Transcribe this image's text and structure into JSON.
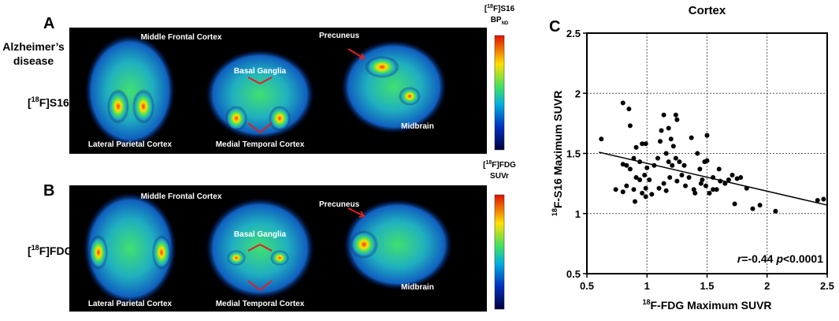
{
  "figure": {
    "panel_labels": [
      "A",
      "B",
      "C"
    ],
    "row_title": "Alzheimer’s disease",
    "rows": [
      {
        "tracer": {
          "pre": "[",
          "sup": "18",
          "post": "F]S16"
        },
        "colorbar": {
          "pre": "[",
          "sup": "18",
          "post": "F]S16",
          "line2": "BP",
          "sub": "ND"
        },
        "regions": [
          "Middle Frontal Cortex",
          "Precuneus",
          "Basal Ganglia",
          "Lateral  Parietal Cortex",
          "Medial Temporal Cortex",
          "Midbrain"
        ]
      },
      {
        "tracer": {
          "pre": "[",
          "sup": "18",
          "post": "F]FDG"
        },
        "colorbar": {
          "pre": "[",
          "sup": "18",
          "post": "F]FDG",
          "line2": "SUVr"
        },
        "regions": [
          "Middle Frontal Cortex",
          "Precuneus",
          "Basal Ganglia",
          "Lateral Parietal Cortex",
          "Medial Temporal Cortex",
          "Midbrain"
        ]
      }
    ]
  },
  "chart_data": {
    "type": "scatter",
    "title": "Cortex",
    "x_label": {
      "sup": "18",
      "text": "F-FDG Maximum SUVR"
    },
    "y_label": {
      "sup": "18",
      "text": "F-S16 Maximum SUVR"
    },
    "annotation": {
      "r_symbol": "r",
      "r_text": "=-0.44",
      "p_symbol": "p",
      "p_text": "<0.0001"
    },
    "xlim": [
      0.5,
      2.5
    ],
    "ylim": [
      0.5,
      2.5
    ],
    "xticks": [
      0.5,
      1.0,
      1.5,
      2.0,
      2.5
    ],
    "yticks": [
      0.5,
      1.0,
      1.5,
      2.0,
      2.5
    ],
    "grid": true,
    "color": "#000000",
    "x": [
      0.62,
      0.8,
      0.85,
      0.86,
      0.91,
      0.96,
      0.99,
      0.89,
      0.94,
      0.83,
      0.86,
      0.8,
      0.74,
      0.8,
      0.83,
      0.89,
      0.9,
      0.94,
      0.98,
      0.96,
      0.99,
      1.02,
      1.0,
      1.06,
      1.09,
      1.11,
      1.12,
      1.14,
      1.18,
      1.2,
      1.22,
      1.24,
      1.25,
      1.16,
      1.18,
      1.21,
      1.24,
      1.27,
      1.29,
      1.25,
      1.19,
      1.14,
      1.1,
      1.04,
      1.32,
      1.35,
      1.39,
      1.37,
      1.42,
      1.44,
      1.46,
      1.48,
      1.5,
      1.49,
      1.52,
      1.55,
      1.58,
      1.6,
      1.61,
      1.65,
      1.68,
      1.71,
      1.75,
      1.78,
      1.73,
      1.83,
      1.88,
      1.94,
      2.07,
      2.42,
      2.47,
      1.5,
      1.31,
      1.4,
      0.91,
      0.99,
      1.16,
      1.45,
      1.55
    ],
    "y": [
      1.62,
      1.92,
      1.87,
      1.73,
      1.55,
      1.58,
      1.58,
      1.46,
      1.43,
      1.4,
      1.37,
      1.41,
      1.2,
      1.18,
      1.23,
      1.2,
      1.1,
      1.28,
      1.32,
      1.17,
      1.21,
      1.28,
      1.38,
      1.4,
      1.46,
      1.6,
      1.69,
      1.82,
      1.71,
      1.62,
      1.56,
      1.82,
      1.78,
      1.5,
      1.43,
      1.4,
      1.46,
      1.43,
      1.32,
      1.27,
      1.3,
      1.25,
      1.21,
      1.16,
      1.23,
      1.3,
      1.2,
      1.63,
      1.5,
      1.37,
      1.28,
      1.43,
      1.44,
      1.23,
      1.17,
      1.3,
      1.2,
      1.37,
      1.27,
      1.25,
      1.28,
      1.32,
      1.29,
      1.3,
      1.08,
      1.21,
      1.04,
      1.07,
      1.02,
      1.11,
      1.12,
      1.65,
      1.4,
      1.17,
      1.3,
      1.14,
      1.19,
      1.25,
      1.2
    ],
    "fit_line": {
      "x": [
        0.6,
        2.5
      ],
      "y": [
        1.51,
        1.07
      ]
    }
  }
}
